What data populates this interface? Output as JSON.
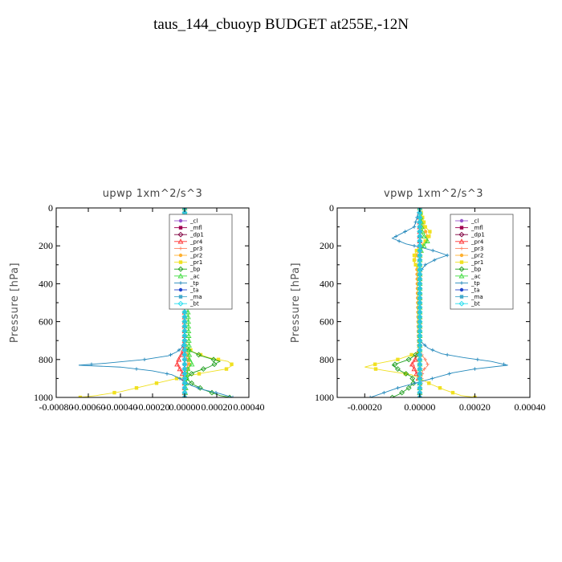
{
  "title": "taus_144_cbuoyp  BUDGET at255E,-12N",
  "chart_data": [
    {
      "type": "line",
      "title": "upwp   1xm^2/s^3",
      "ylabel": "Pressure [hPa]",
      "xlim": [
        -0.0008,
        0.0004
      ],
      "ylim": [
        1000,
        0
      ],
      "xticks": [
        -0.0008,
        -0.0006,
        -0.0004,
        -0.0002,
        0.0,
        0.0002,
        0.0004
      ],
      "xtick_labels": [
        "-0.00080",
        "-0.00060",
        "-0.00040",
        "-0.00020",
        "0.00000",
        "0.00020",
        "0.00040"
      ],
      "yticks": [
        0,
        200,
        400,
        600,
        800,
        1000
      ],
      "ytick_labels": [
        "0",
        "200",
        "400",
        "600",
        "800",
        "1000"
      ],
      "legend": {
        "placement": "top-right",
        "entries": [
          "_cl",
          "_mfl",
          "_dp1",
          "_pr4",
          "_pr3",
          "_pr2",
          "_pr1",
          "_bp",
          "_ac",
          "_tp",
          "_ta",
          "_ma",
          "_bt"
        ]
      },
      "series": [
        {
          "name": "_cl",
          "color": "#9955cc",
          "y": [
            0,
            1000
          ],
          "x": [
            0,
            0
          ]
        },
        {
          "name": "_mfl",
          "color": "#a00050",
          "y": [
            0,
            1000
          ],
          "x": [
            0,
            0
          ]
        },
        {
          "name": "_dp1",
          "color": "#800040",
          "y": [
            0,
            1000
          ],
          "x": [
            0,
            0
          ]
        },
        {
          "name": "_pr4",
          "color": "#ff3030",
          "y": [
            0,
            700,
            760,
            790,
            820,
            850,
            880,
            920,
            1000
          ],
          "x": [
            0,
            0,
            -1e-05,
            -3e-05,
            -5e-05,
            -3e-05,
            -1e-05,
            0,
            0
          ]
        },
        {
          "name": "_pr3",
          "color": "#ff8060",
          "y": [
            0,
            700,
            780,
            820,
            860,
            1000
          ],
          "x": [
            0,
            0,
            1e-05,
            2e-05,
            1e-05,
            0
          ]
        },
        {
          "name": "_pr2",
          "color": "#ffb030",
          "y": [
            0,
            90,
            120,
            150,
            700,
            780,
            830,
            880,
            1000
          ],
          "x": [
            0,
            1e-05,
            2e-05,
            1e-05,
            0,
            2e-05,
            3e-05,
            1e-05,
            0
          ]
        },
        {
          "name": "_pr1",
          "color": "#f0e020",
          "y": [
            0,
            720,
            760,
            790,
            810,
            830,
            850,
            870,
            890,
            910,
            930,
            950,
            970,
            990,
            1000
          ],
          "x": [
            0,
            0,
            5e-05,
            0.00015,
            0.00027,
            0.0003,
            0.00026,
            0.00012,
            0.0,
            -0.0001,
            -0.0002,
            -0.0003,
            -0.0004,
            -0.00055,
            -0.00065
          ]
        },
        {
          "name": "_bp",
          "color": "#20a020",
          "y": [
            0,
            740,
            780,
            810,
            840,
            870,
            900,
            930,
            960,
            990,
            1000
          ],
          "x": [
            0,
            0,
            0.0001,
            0.00022,
            0.00015,
            5e-05,
            1e-05,
            5e-05,
            0.00012,
            0.00022,
            0.00028
          ]
        },
        {
          "name": "_ac",
          "color": "#40dd40",
          "y": [
            0,
            800,
            820,
            850,
            1000
          ],
          "x": [
            0,
            3e-05,
            5e-05,
            2e-05,
            0
          ]
        },
        {
          "name": "_tp",
          "color": "#2288bb",
          "y": [
            0,
            90,
            130,
            160,
            190,
            220,
            250,
            700,
            740,
            760,
            780,
            800,
            820,
            830,
            840,
            860,
            880,
            900,
            920,
            940,
            960,
            980,
            1000
          ],
          "x": [
            0,
            -1e-05,
            -2e-05,
            -8e-05,
            -3e-05,
            -1e-05,
            0,
            0,
            -2e-05,
            -5e-05,
            -0.0001,
            -0.00025,
            -0.0005,
            -0.00066,
            -0.0004,
            -0.0002,
            -8e-05,
            -3e-05,
            0.0,
            5e-05,
            0.00012,
            0.00022,
            0.0003
          ]
        },
        {
          "name": "_ta",
          "color": "#2244cc",
          "y": [
            0,
            1000
          ],
          "x": [
            0,
            0
          ]
        },
        {
          "name": "_ma",
          "color": "#44aacc",
          "y": [
            0,
            1000
          ],
          "x": [
            0,
            0
          ]
        },
        {
          "name": "_bt",
          "color": "#22ddee",
          "y": [
            0,
            1000
          ],
          "x": [
            0,
            0
          ]
        }
      ]
    },
    {
      "type": "line",
      "title": "vpwp   1xm^2/s^3",
      "ylabel": "Pressure [hPa]",
      "xlim": [
        -0.0003,
        0.0004
      ],
      "ylim": [
        1000,
        0
      ],
      "xticks": [
        -0.0002,
        0.0,
        0.0002,
        0.0004
      ],
      "xtick_labels": [
        "-0.00020",
        "0.00000",
        "0.00020",
        "0.00040"
      ],
      "yticks": [
        0,
        200,
        400,
        600,
        800,
        1000
      ],
      "ytick_labels": [
        "0",
        "200",
        "400",
        "600",
        "800",
        "1000"
      ],
      "legend": {
        "placement": "top-right",
        "entries": [
          "_cl",
          "_mfl",
          "_dp1",
          "_pr4",
          "_pr3",
          "_pr2",
          "_pr1",
          "_bp",
          "_ac",
          "_tp",
          "_ta",
          "_ma",
          "_bt"
        ]
      },
      "series": [
        {
          "name": "_cl",
          "color": "#9955cc",
          "y": [
            0,
            1000
          ],
          "x": [
            0,
            0
          ]
        },
        {
          "name": "_mfl",
          "color": "#a00050",
          "y": [
            0,
            1000
          ],
          "x": [
            0,
            0
          ]
        },
        {
          "name": "_dp1",
          "color": "#800040",
          "y": [
            0,
            1000
          ],
          "x": [
            0,
            0
          ]
        },
        {
          "name": "_pr4",
          "color": "#ff3030",
          "y": [
            0,
            740,
            780,
            810,
            830,
            850,
            880,
            920,
            1000
          ],
          "x": [
            0,
            0,
            -1e-05,
            -2e-05,
            -3e-05,
            -2e-05,
            -1e-05,
            0,
            0
          ]
        },
        {
          "name": "_pr3",
          "color": "#ff8060",
          "y": [
            0,
            760,
            800,
            830,
            860,
            1000
          ],
          "x": [
            0,
            0,
            2e-05,
            3e-05,
            1e-05,
            0
          ]
        },
        {
          "name": "_pr2",
          "color": "#ffb030",
          "y": [
            0,
            80,
            120,
            160,
            200,
            240,
            280,
            320,
            1000
          ],
          "x": [
            0,
            1e-05,
            2e-05,
            3e-05,
            1e-05,
            -1e-05,
            -2e-05,
            -1e-05,
            0
          ]
        },
        {
          "name": "_pr1",
          "color": "#f0e020",
          "y": [
            0,
            100,
            130,
            160,
            190,
            220,
            250,
            290,
            330,
            760,
            800,
            820,
            840,
            860,
            880,
            900,
            930,
            960,
            990,
            1000
          ],
          "x": [
            0,
            2e-05,
            4e-05,
            3e-05,
            1e-05,
            -1e-05,
            -2e-05,
            -2e-05,
            0,
            0,
            -8e-05,
            -0.00015,
            -0.0002,
            -0.00012,
            -3e-05,
            0.0,
            4e-05,
            9e-05,
            0.00015,
            0.0002
          ]
        },
        {
          "name": "_bp",
          "color": "#20a020",
          "y": [
            0,
            760,
            800,
            830,
            860,
            890,
            920,
            950,
            980,
            1000
          ],
          "x": [
            0,
            0,
            -4e-05,
            -0.0001,
            -7e-05,
            -3e-05,
            -2e-05,
            -4e-05,
            -7e-05,
            -0.0001
          ]
        },
        {
          "name": "_ac",
          "color": "#40dd40",
          "y": [
            0,
            140,
            170,
            210,
            240,
            1000
          ],
          "x": [
            0,
            1e-05,
            3e-05,
            1e-05,
            0,
            0
          ]
        },
        {
          "name": "_tp",
          "color": "#2288bb",
          "y": [
            0,
            100,
            130,
            160,
            190,
            210,
            230,
            250,
            270,
            300,
            340,
            380,
            700,
            740,
            770,
            790,
            810,
            830,
            850,
            870,
            890,
            910,
            930,
            950,
            970,
            990,
            1000
          ],
          "x": [
            0,
            -2e-05,
            -6e-05,
            -0.0001,
            -5e-05,
            1e-05,
            6e-05,
            0.0001,
            6e-05,
            2e-05,
            0,
            0,
            0,
            3e-05,
            8e-05,
            0.00016,
            0.00026,
            0.00032,
            0.0002,
            0.00012,
            7e-05,
            2e-05,
            -3e-05,
            -8e-05,
            -0.00012,
            -0.00016,
            -0.00018
          ]
        },
        {
          "name": "_ta",
          "color": "#2244cc",
          "y": [
            0,
            1000
          ],
          "x": [
            0,
            0
          ]
        },
        {
          "name": "_ma",
          "color": "#44aacc",
          "y": [
            0,
            1000
          ],
          "x": [
            0,
            0
          ]
        },
        {
          "name": "_bt",
          "color": "#22ddee",
          "y": [
            0,
            1000
          ],
          "x": [
            0,
            0
          ]
        }
      ]
    }
  ]
}
